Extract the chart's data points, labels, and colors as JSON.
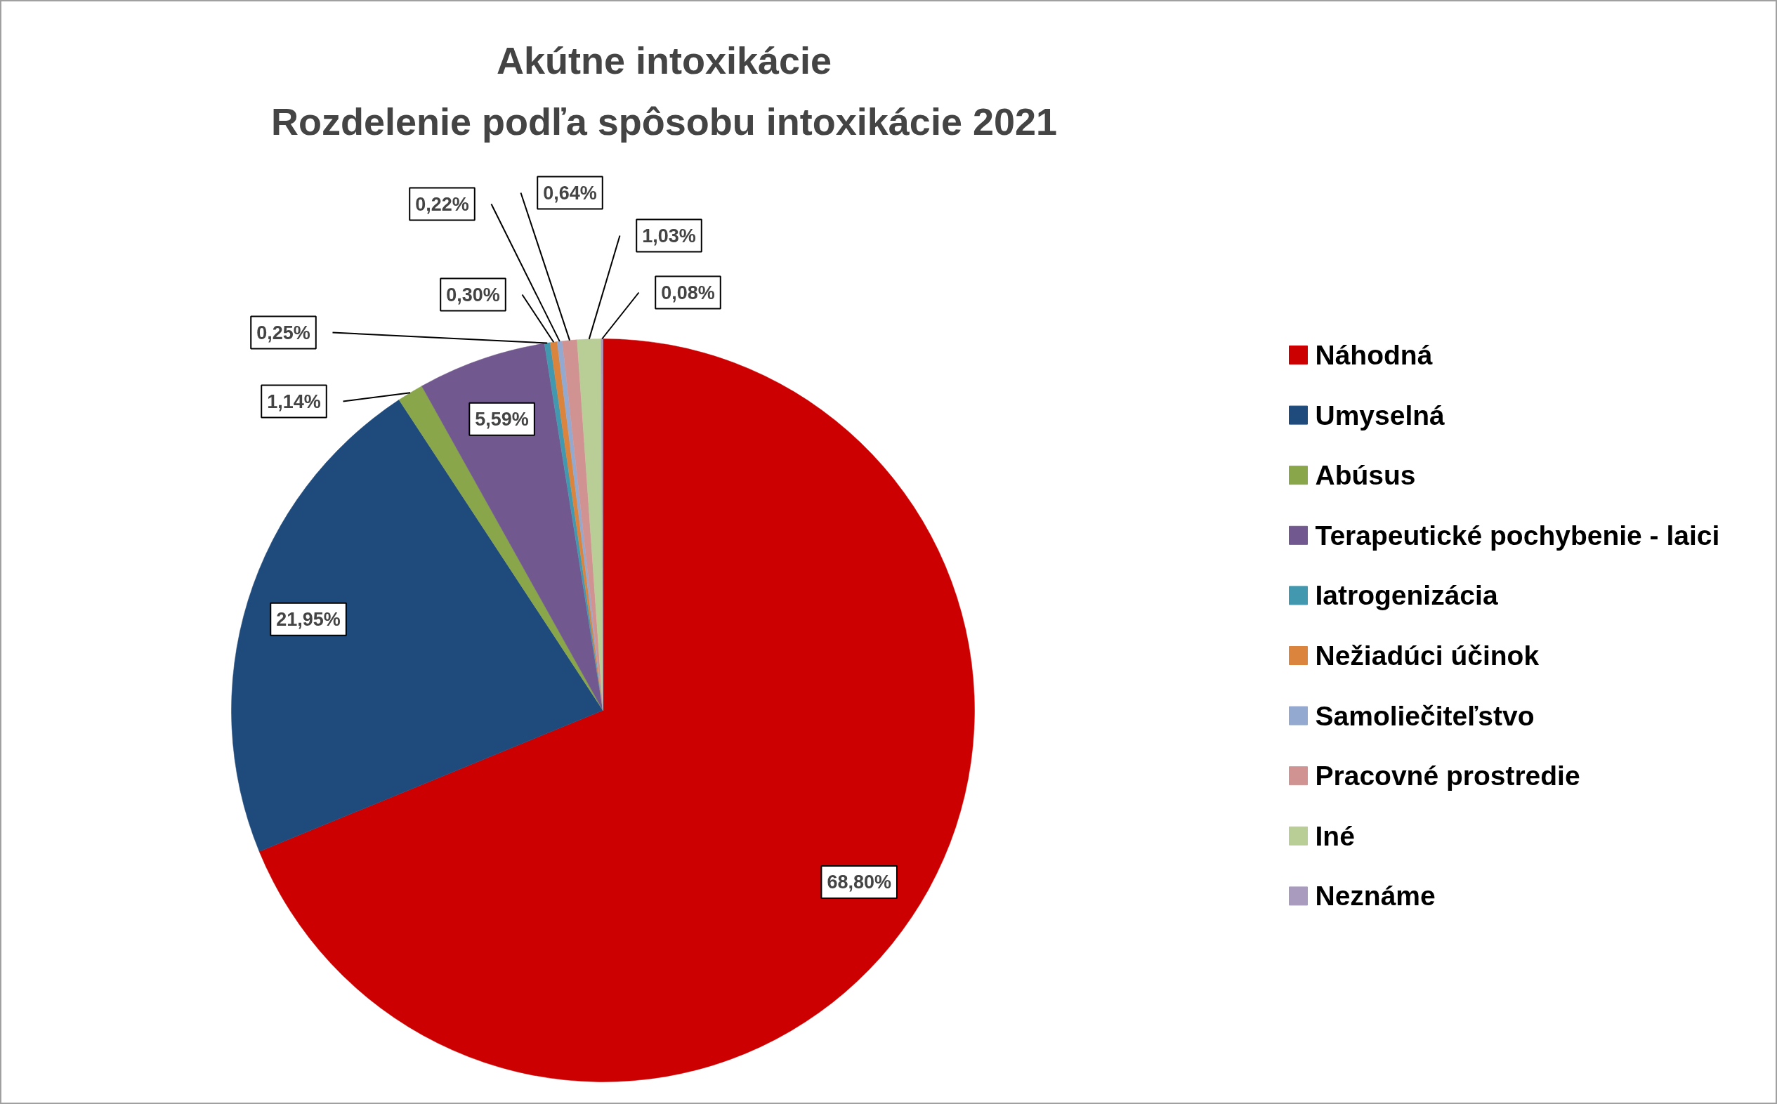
{
  "chart_data": {
    "type": "pie",
    "title": "Akútne intoxikácie",
    "subtitle": "Rozdelenie podľa spôsobu intoxikácie 2021",
    "categories": [
      "Náhodná",
      "Umyselná",
      "Abúsus",
      "Terapeutické pochybenie - laici",
      "Iatrogenizácia",
      "Nežiadúci účinok",
      "Samoliečiteľstvo",
      "Pracovné prostredie",
      "Iné",
      "Neznáme"
    ],
    "values": [
      68.8,
      21.95,
      1.14,
      5.59,
      0.25,
      0.3,
      0.22,
      0.64,
      1.03,
      0.08
    ],
    "value_labels": [
      "68,80%",
      "21,95%",
      "1,14%",
      "5,59%",
      "0,25%",
      "0,30%",
      "0,22%",
      "0,64%",
      "1,03%",
      "0,08%"
    ],
    "colors": [
      "#cc0000",
      "#1f4a7c",
      "#8aa64a",
      "#71588f",
      "#4198af",
      "#db843d",
      "#93a9cf",
      "#d19392",
      "#b9cd96",
      "#a99bbd"
    ],
    "legend": "right"
  }
}
